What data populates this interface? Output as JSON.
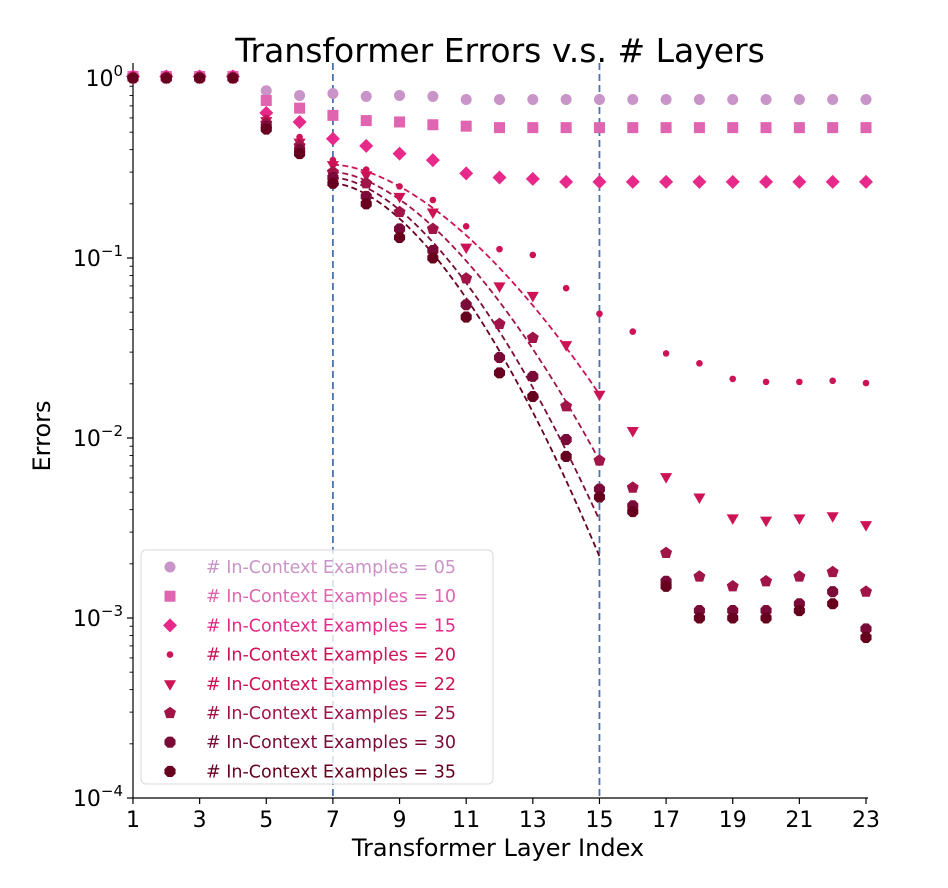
{
  "chart_data": {
    "type": "scatter",
    "title": "Transformer Errors v.s. # Layers",
    "xlabel": "Transformer Layer Index",
    "ylabel": "Errors",
    "yscale": "log",
    "xlim": [
      1,
      23
    ],
    "ylim": [
      0.0001,
      1.2
    ],
    "xticks": [
      "1",
      "3",
      "5",
      "7",
      "9",
      "11",
      "13",
      "15",
      "17",
      "19",
      "21",
      "23"
    ],
    "yticks": [
      {
        "value": 1,
        "base": "10",
        "exp": "0"
      },
      {
        "value": 0.1,
        "base": "10",
        "exp": "−1"
      },
      {
        "value": 0.01,
        "base": "10",
        "exp": "−2"
      },
      {
        "value": 0.001,
        "base": "10",
        "exp": "−3"
      },
      {
        "value": 0.0001,
        "base": "10",
        "exp": "−4"
      }
    ],
    "vertical_lines": [
      7,
      15
    ],
    "vertical_line_color": "#4c72b0",
    "legend_position": "lower-left",
    "x": [
      1,
      2,
      3,
      4,
      5,
      6,
      7,
      8,
      9,
      10,
      11,
      12,
      13,
      14,
      15,
      16,
      17,
      18,
      19,
      20,
      21,
      22,
      23
    ],
    "series": [
      {
        "name": "# In-Context Examples = 05",
        "marker": "circle",
        "color": "#c994c7",
        "values": [
          1.03,
          1.03,
          1.03,
          1.03,
          0.85,
          0.8,
          0.82,
          0.79,
          0.8,
          0.79,
          0.76,
          0.76,
          0.76,
          0.76,
          0.76,
          0.76,
          0.76,
          0.76,
          0.76,
          0.76,
          0.76,
          0.76,
          0.76
        ]
      },
      {
        "name": "# In-Context Examples = 10",
        "marker": "square",
        "color": "#df65b0",
        "values": [
          1.02,
          1.02,
          1.02,
          1.02,
          0.75,
          0.68,
          0.62,
          0.58,
          0.57,
          0.55,
          0.54,
          0.53,
          0.53,
          0.53,
          0.53,
          0.53,
          0.53,
          0.53,
          0.53,
          0.53,
          0.53,
          0.53,
          0.53
        ]
      },
      {
        "name": "# In-Context Examples = 15",
        "marker": "diamond",
        "color": "#e7298a",
        "values": [
          1.02,
          1.02,
          1.02,
          1.02,
          0.64,
          0.57,
          0.46,
          0.42,
          0.38,
          0.35,
          0.295,
          0.28,
          0.275,
          0.265,
          0.265,
          0.265,
          0.265,
          0.265,
          0.265,
          0.265,
          0.265,
          0.265,
          0.265
        ]
      },
      {
        "name": "# In-Context Examples = 20",
        "marker": "smalldot",
        "color": "#ce1256",
        "values": [
          1.01,
          1.01,
          1.01,
          1.01,
          0.6,
          0.47,
          0.35,
          0.31,
          0.25,
          0.21,
          0.15,
          0.112,
          0.104,
          0.068,
          0.049,
          0.039,
          0.0295,
          0.026,
          0.0213,
          0.0205,
          0.0205,
          0.0208,
          0.0202
        ]
      },
      {
        "name": "# In-Context Examples = 22",
        "marker": "triangle",
        "color": "#ce1256",
        "values": [
          1.01,
          1.01,
          1.01,
          1.01,
          0.58,
          0.44,
          0.33,
          0.29,
          0.22,
          0.18,
          0.115,
          0.07,
          0.062,
          0.033,
          0.0175,
          0.011,
          0.0061,
          0.0047,
          0.0036,
          0.0035,
          0.0036,
          0.0037,
          0.0033
        ]
      },
      {
        "name": "# In-Context Examples = 25",
        "marker": "pentagon",
        "color": "#a01448",
        "values": [
          1.0,
          1.0,
          1.0,
          1.0,
          0.56,
          0.42,
          0.3,
          0.26,
          0.18,
          0.145,
          0.077,
          0.043,
          0.036,
          0.015,
          0.0075,
          0.0053,
          0.0023,
          0.0017,
          0.0015,
          0.0016,
          0.0017,
          0.0018,
          0.0014
        ]
      },
      {
        "name": "# In-Context Examples = 30",
        "marker": "octagon",
        "color": "#7a0b38",
        "values": [
          1.0,
          1.0,
          1.0,
          1.0,
          0.54,
          0.4,
          0.28,
          0.22,
          0.145,
          0.11,
          0.055,
          0.028,
          0.022,
          0.0098,
          0.0052,
          0.0042,
          0.0016,
          0.0011,
          0.0011,
          0.0011,
          0.0012,
          0.0014,
          0.00087
        ]
      },
      {
        "name": "# In-Context Examples = 35",
        "marker": "octagon",
        "color": "#67001f",
        "values": [
          1.0,
          1.0,
          1.0,
          1.0,
          0.52,
          0.38,
          0.26,
          0.2,
          0.13,
          0.1,
          0.047,
          0.023,
          0.017,
          0.0079,
          0.0047,
          0.0039,
          0.0015,
          0.001,
          0.001,
          0.001,
          0.0011,
          0.0012,
          0.00078
        ]
      }
    ],
    "fit_curves": [
      {
        "color": "#ce1256",
        "x_range": [
          7,
          15
        ],
        "y_start": 0.33,
        "y_end": 0.0175
      },
      {
        "color": "#a01448",
        "x_range": [
          7,
          15
        ],
        "y_start": 0.3,
        "y_end": 0.0075
      },
      {
        "color": "#7a0b38",
        "x_range": [
          7,
          15
        ],
        "y_start": 0.28,
        "y_end": 0.0035
      },
      {
        "color": "#67001f",
        "x_range": [
          7,
          15
        ],
        "y_start": 0.26,
        "y_end": 0.0022
      }
    ]
  }
}
